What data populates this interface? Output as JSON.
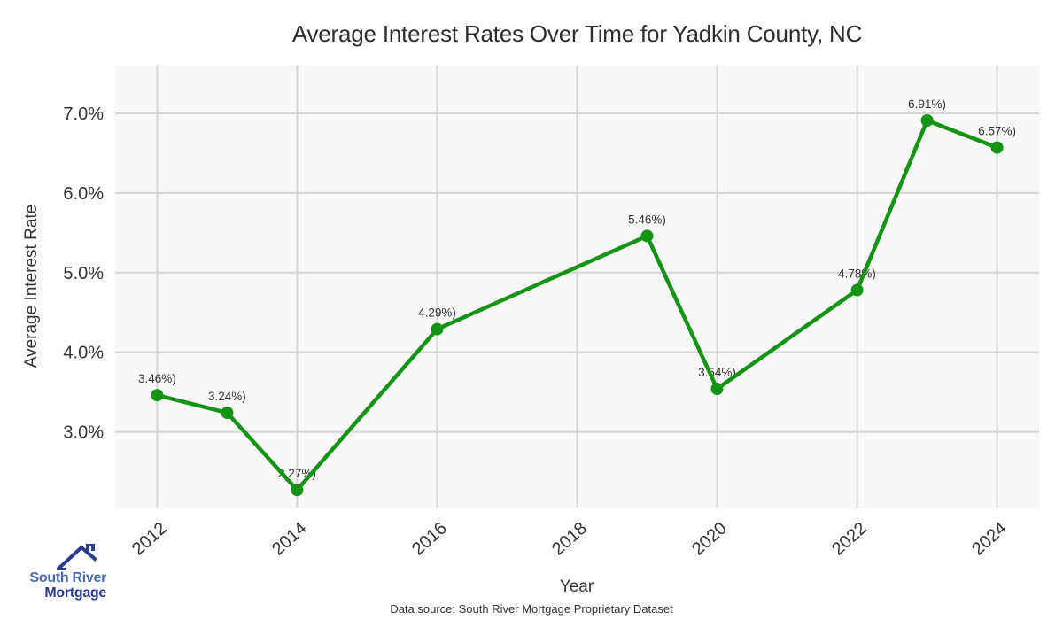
{
  "page": {
    "title": "Average Interest Rates Over Time for Yadkin County, NC",
    "footer_source": "Data source: South River Mortgage Proprietary Dataset"
  },
  "logo": {
    "line1": "South River",
    "line2": "Mortgage",
    "primary_color": "#2b3990",
    "secondary_color": "#4a6bae"
  },
  "chart_data": {
    "type": "line",
    "title": "Average Interest Rates Over Time for Yadkin County, NC",
    "xlabel": "Year",
    "ylabel": "Average Interest Rate",
    "x": [
      2012,
      2013,
      2014,
      2016,
      2019,
      2020,
      2022,
      2023,
      2024
    ],
    "y": [
      3.46,
      3.24,
      2.27,
      4.29,
      5.46,
      3.54,
      4.78,
      6.91,
      6.57
    ],
    "point_labels": [
      "3.46%)",
      "3.24%)",
      "2.27%)",
      "4.29%)",
      "5.46%)",
      "3.54%)",
      "4.78%)",
      "6.91%)",
      "6.57%)"
    ],
    "x_ticks": [
      2012,
      2014,
      2016,
      2018,
      2020,
      2022,
      2024
    ],
    "y_ticks": [
      3,
      4,
      5,
      6,
      7
    ],
    "y_tick_labels": [
      "3.0%",
      "4.0%",
      "5.0%",
      "6.0%",
      "7.0%"
    ],
    "xlim": [
      2011.4,
      2024.6
    ],
    "ylim": [
      2.05,
      7.6
    ],
    "grid": true,
    "legend": "none",
    "line_color": "#149314",
    "marker_color": "#149314",
    "plot_bg_color": "#f8f8f8",
    "grid_color": "#d5d5d5",
    "text_color": "#333333"
  }
}
